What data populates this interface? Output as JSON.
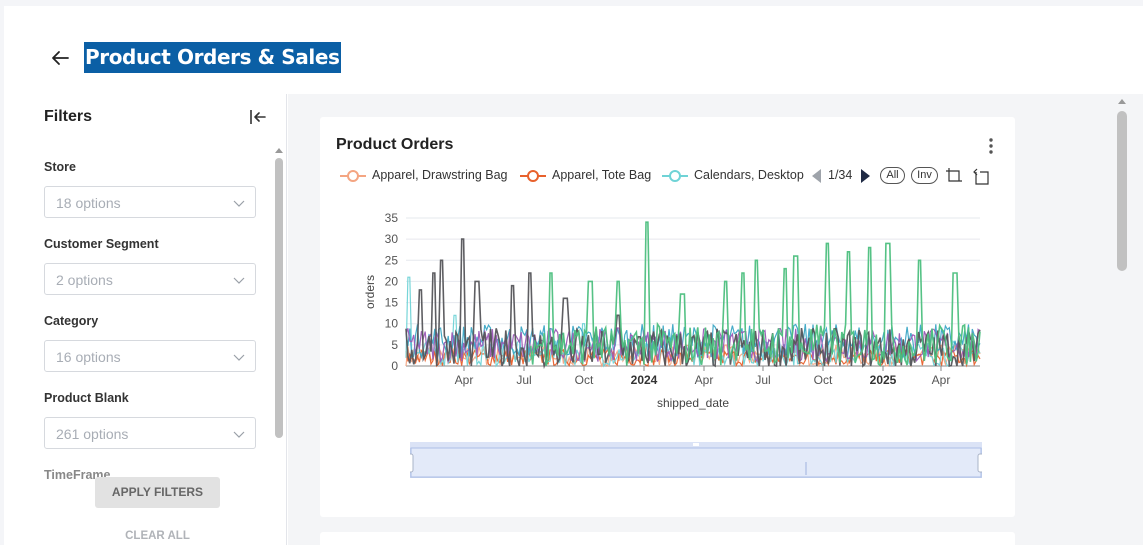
{
  "header": {
    "title": "Product Orders & Sales",
    "back_icon": "arrow-left-icon"
  },
  "sidebar": {
    "title": "Filters",
    "collapse_icon": "collapse-left-icon",
    "filters": [
      {
        "label": "Store",
        "placeholder": "18 options"
      },
      {
        "label": "Customer Segment",
        "placeholder": "2 options"
      },
      {
        "label": "Category",
        "placeholder": "16 options"
      },
      {
        "label": "Product Blank",
        "placeholder": "261 options"
      },
      {
        "label": "TimeFrame"
      }
    ],
    "apply_label": "APPLY FILTERS",
    "clear_label": "CLEAR ALL"
  },
  "card": {
    "title": "Product Orders",
    "menu_icon": "more-vertical-icon",
    "legend": {
      "items": [
        {
          "name": "Apparel, Drawstring Bag",
          "color": "#f4a582"
        },
        {
          "name": "Apparel, Tote Bag",
          "color": "#e8612c"
        },
        {
          "name": "Calendars, Desktop",
          "color": "#6fd3d6"
        }
      ],
      "page": "1/34",
      "all_label": "All",
      "inv_label": "Inv"
    }
  },
  "chart_data": {
    "type": "line",
    "ylabel": "orders",
    "xlabel": "shipped_date",
    "ylim": [
      0,
      35
    ],
    "yticks": [
      0,
      5,
      10,
      15,
      20,
      25,
      30,
      35
    ],
    "xticks": [
      "Apr",
      "Jul",
      "Oct",
      "2024",
      "Apr",
      "Jul",
      "Oct",
      "2025",
      "Apr"
    ],
    "bold_xticks": [
      "2024",
      "2025"
    ],
    "x_range": [
      "2023-01-01",
      "2025-06-30"
    ],
    "grid": true,
    "legend_position": "top",
    "series": [
      {
        "name": "Apparel, Drawstring Bag",
        "color": "#f4a582",
        "base": 2.5,
        "amp": 2.5
      },
      {
        "name": "Apparel, Tote Bag",
        "color": "#e8612c",
        "base": 2,
        "amp": 2
      },
      {
        "name": "Calendars, Desktop",
        "color": "#6fd3d6",
        "base": 3,
        "amp": 3,
        "peaks": [
          [
            0.01,
            21
          ],
          [
            0.14,
            12
          ],
          [
            0.5,
            10
          ]
        ]
      },
      {
        "color": "#3ba6c5",
        "base": 6,
        "amp": 4
      },
      {
        "color": "#9b59b6",
        "base": 5,
        "amp": 4
      },
      {
        "color": "#55555a",
        "base": 4,
        "amp": 5,
        "peaks": [
          [
            0.04,
            18
          ],
          [
            0.08,
            22
          ],
          [
            0.1,
            25
          ],
          [
            0.16,
            30
          ],
          [
            0.2,
            20
          ],
          [
            0.3,
            19
          ],
          [
            0.35,
            22
          ],
          [
            0.45,
            16
          ],
          [
            0.6,
            12
          ]
        ]
      },
      {
        "color": "#4cbf7e",
        "base": 5,
        "amp": 5,
        "start": 0.35,
        "peaks": [
          [
            0.41,
            22
          ],
          [
            0.52,
            20
          ],
          [
            0.6,
            20
          ],
          [
            0.68,
            34
          ],
          [
            0.78,
            17
          ],
          [
            0.9,
            20
          ],
          [
            0.95,
            22
          ],
          [
            0.99,
            25
          ],
          [
            1.07,
            23
          ],
          [
            1.1,
            26
          ],
          [
            1.19,
            29
          ],
          [
            1.25,
            27
          ],
          [
            1.31,
            28
          ],
          [
            1.36,
            29
          ],
          [
            1.45,
            25
          ],
          [
            1.55,
            22
          ]
        ]
      }
    ]
  }
}
